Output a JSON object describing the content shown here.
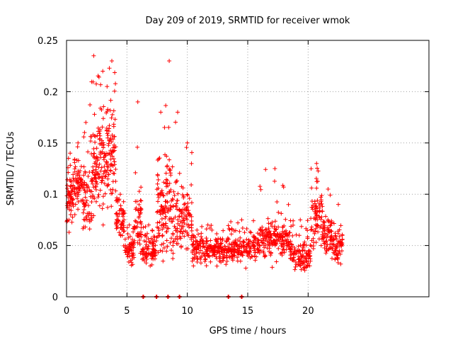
{
  "chart_data": {
    "type": "scatter",
    "title": "Day 209 of 2019, SRMTID for receiver wmok",
    "xlabel": "GPS time / hours",
    "ylabel": "SRMTID / TECUs",
    "xlim": [
      0,
      30
    ],
    "ylim": [
      0,
      0.25
    ],
    "xticks": [
      0,
      5,
      10,
      15,
      20
    ],
    "xtick_labels": [
      "0",
      "5",
      "10",
      "15",
      "20"
    ],
    "yticks": [
      0,
      0.05,
      0.1,
      0.15,
      0.2,
      0.25
    ],
    "ytick_labels": [
      "0",
      "0.05",
      "0.1",
      "0.15",
      "0.2",
      "0.25"
    ],
    "grid": true,
    "legend": "none",
    "marker": "+",
    "color": "#ff0000",
    "zero_markers_x": [
      6.35,
      7.45,
      8.4,
      9.35,
      13.4,
      14.5
    ],
    "segments": [
      {
        "x0": 0.0,
        "x1": 0.6,
        "center": 0.095,
        "spread": 0.025,
        "max": 0.14,
        "min": 0.055,
        "n": 60
      },
      {
        "x0": 0.6,
        "x1": 1.3,
        "center": 0.11,
        "spread": 0.025,
        "max": 0.15,
        "min": 0.07,
        "n": 60
      },
      {
        "x0": 1.3,
        "x1": 1.9,
        "center": 0.09,
        "spread": 0.03,
        "max": 0.17,
        "min": 0.027,
        "n": 50
      },
      {
        "x0": 1.9,
        "x1": 2.6,
        "center": 0.12,
        "spread": 0.04,
        "max": 0.235,
        "min": 0.04,
        "n": 70
      },
      {
        "x0": 2.6,
        "x1": 3.4,
        "center": 0.135,
        "spread": 0.045,
        "max": 0.22,
        "min": 0.07,
        "n": 80
      },
      {
        "x0": 3.4,
        "x1": 4.1,
        "center": 0.14,
        "spread": 0.045,
        "max": 0.23,
        "min": 0.06,
        "n": 70
      },
      {
        "x0": 4.1,
        "x1": 4.8,
        "center": 0.075,
        "spread": 0.02,
        "max": 0.1,
        "min": 0.04,
        "n": 60
      },
      {
        "x0": 4.8,
        "x1": 5.6,
        "center": 0.045,
        "spread": 0.012,
        "max": 0.07,
        "min": 0.015,
        "n": 60
      },
      {
        "x0": 5.6,
        "x1": 6.2,
        "center": 0.07,
        "spread": 0.03,
        "max": 0.19,
        "min": 0.025,
        "n": 50
      },
      {
        "x0": 6.2,
        "x1": 7.4,
        "center": 0.045,
        "spread": 0.012,
        "max": 0.07,
        "min": 0.02,
        "n": 80
      },
      {
        "x0": 7.4,
        "x1": 8.2,
        "center": 0.08,
        "spread": 0.035,
        "max": 0.18,
        "min": 0.03,
        "n": 70
      },
      {
        "x0": 8.2,
        "x1": 8.8,
        "center": 0.09,
        "spread": 0.04,
        "max": 0.23,
        "min": 0.035,
        "n": 60
      },
      {
        "x0": 8.8,
        "x1": 9.6,
        "center": 0.075,
        "spread": 0.03,
        "max": 0.18,
        "min": 0.035,
        "n": 60
      },
      {
        "x0": 9.6,
        "x1": 10.4,
        "center": 0.075,
        "spread": 0.025,
        "max": 0.15,
        "min": 0.035,
        "n": 60
      },
      {
        "x0": 10.4,
        "x1": 13.0,
        "center": 0.047,
        "spread": 0.012,
        "max": 0.07,
        "min": 0.02,
        "n": 180
      },
      {
        "x0": 13.0,
        "x1": 16.0,
        "center": 0.048,
        "spread": 0.012,
        "max": 0.075,
        "min": 0.012,
        "n": 200
      },
      {
        "x0": 16.0,
        "x1": 18.5,
        "center": 0.055,
        "spread": 0.015,
        "max": 0.125,
        "min": 0.01,
        "n": 180
      },
      {
        "x0": 18.5,
        "x1": 20.2,
        "center": 0.04,
        "spread": 0.012,
        "max": 0.075,
        "min": 0.012,
        "n": 120
      },
      {
        "x0": 20.2,
        "x1": 21.2,
        "center": 0.075,
        "spread": 0.025,
        "max": 0.13,
        "min": 0.03,
        "n": 80
      },
      {
        "x0": 21.2,
        "x1": 22.1,
        "center": 0.06,
        "spread": 0.02,
        "max": 0.105,
        "min": 0.02,
        "n": 70
      },
      {
        "x0": 22.1,
        "x1": 22.9,
        "center": 0.05,
        "spread": 0.015,
        "max": 0.09,
        "min": 0.02,
        "n": 60
      }
    ]
  }
}
